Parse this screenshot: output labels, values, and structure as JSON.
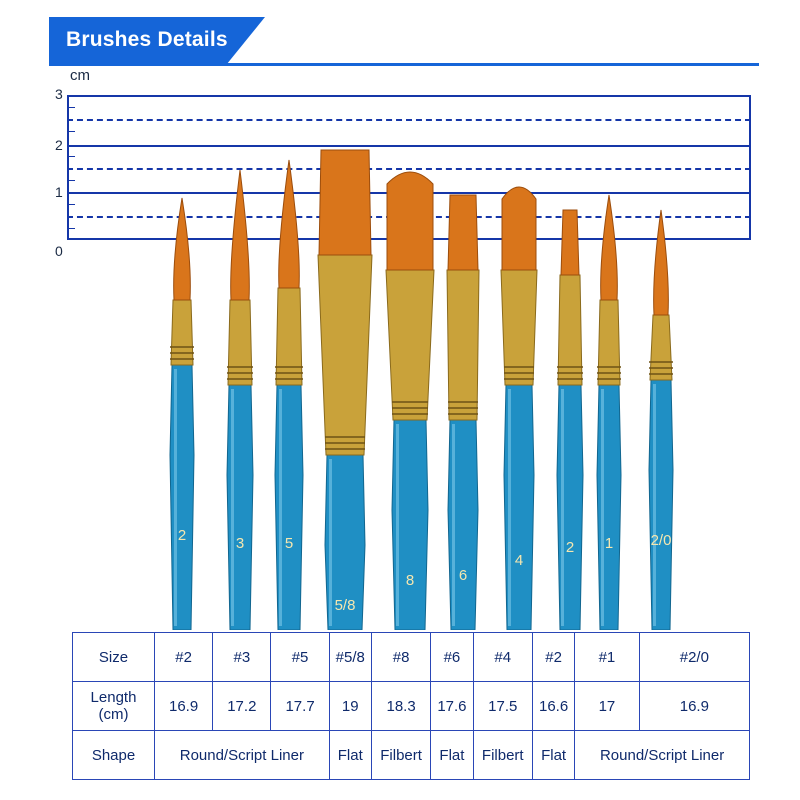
{
  "header": {
    "title": "Brushes Details"
  },
  "ruler": {
    "unit": "cm",
    "labels": [
      "3",
      "2",
      "1",
      "0"
    ]
  },
  "brushes": [
    {
      "size_mark": "2",
      "style": "round"
    },
    {
      "size_mark": "3",
      "style": "round"
    },
    {
      "size_mark": "5",
      "style": "round"
    },
    {
      "size_mark": "5/8",
      "style": "flat"
    },
    {
      "size_mark": "8",
      "style": "filbert"
    },
    {
      "size_mark": "6",
      "style": "flat"
    },
    {
      "size_mark": "4",
      "style": "filbert"
    },
    {
      "size_mark": "2",
      "style": "flat"
    },
    {
      "size_mark": "1",
      "style": "round"
    },
    {
      "size_mark": "2/0",
      "style": "round"
    }
  ],
  "table": {
    "size_label": "Size",
    "length_label_line1": "Length",
    "length_label_line2": "(cm)",
    "shape_label": "Shape",
    "sizes": [
      "#2",
      "#3",
      "#5",
      "#5/8",
      "#8",
      "#6",
      "#4",
      "#2",
      "#1",
      "#2/0"
    ],
    "lengths": [
      "16.9",
      "17.2",
      "17.7",
      "19",
      "18.3",
      "17.6",
      "17.5",
      "16.6",
      "17",
      "16.9"
    ],
    "shapes": {
      "round_left": "Round/Script Liner",
      "flat_1": "Flat",
      "filbert_1": "Filbert",
      "flat_2": "Flat",
      "filbert_2": "Filbert",
      "flat_3": "Flat",
      "round_right": "Round/Script Liner"
    }
  },
  "colors": {
    "header_blue": "#1565d8",
    "ruler_blue": "#1536a8",
    "handle_blue": "#1f8fc4",
    "ferrule_gold": "#c9a23a",
    "bristle_orange": "#d9751b"
  }
}
